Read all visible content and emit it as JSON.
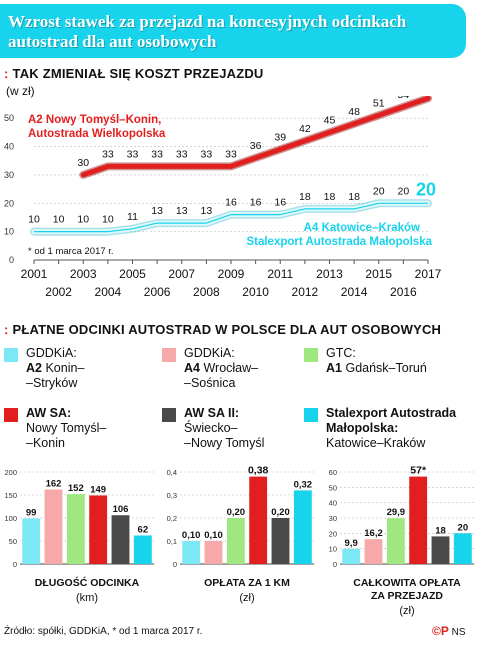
{
  "header": {
    "title": "Wzrost stawek za przejazd na koncesyjnych odcinkach autostrad dla aut osobowych"
  },
  "section1": {
    "mark": ":",
    "title": "TAK ZMIENIAŁ SIĘ KOSZT PRZEJAZDU",
    "unit": "(w zł)"
  },
  "section2": {
    "mark": ":",
    "title": "PŁATNE ODCINKI AUTOSTRAD W POLSCE DLA AUT OSOBOWYCH"
  },
  "legend": [
    {
      "org": "GDDKiA:",
      "road": "A2",
      "route": "Konin–",
      "route2": "–Stryków",
      "color": "#7de8f5",
      "bold_org": false
    },
    {
      "org": "GDDKiA:",
      "road": "A4",
      "route": "Wrocław–",
      "route2": "–Sośnica",
      "color": "#f7a9a9",
      "bold_org": false
    },
    {
      "org": "GTC:",
      "road": "A1",
      "route": "Gdańsk–Toruń",
      "route2": "",
      "color": "#9fe87f",
      "bold_org": false
    },
    {
      "org": "AW SA:",
      "road": "",
      "route": "Nowy Tomyśl–",
      "route2": "–Konin",
      "color": "#e21f1f",
      "bold_org": true
    },
    {
      "org": "AW SA II:",
      "road": "",
      "route": "Świecko–",
      "route2": "–Nowy Tomyśl",
      "color": "#4a4a4a",
      "bold_org": true
    },
    {
      "org": "Stalexport Autostrada Małopolska:",
      "road": "",
      "route": "Katowice–Kraków",
      "route2": "",
      "color": "#17d3ec",
      "bold_org": true
    }
  ],
  "chart_data": [
    {
      "type": "line",
      "title": "TAK ZMIENIAŁ SIĘ KOSZT PRZEJAZDU",
      "ylabel": "(w zł)",
      "ylim": [
        0,
        55
      ],
      "yticks": [
        0,
        10,
        20,
        30,
        40,
        50
      ],
      "x": [
        "2001",
        "2002",
        "2003",
        "2004",
        "2005",
        "2006",
        "2007",
        "2008",
        "2009",
        "2010",
        "2011",
        "2012",
        "2013",
        "2014",
        "2015",
        "2016",
        "2017"
      ],
      "series": [
        {
          "name": "A2 Nowy Tomyśl–Konin, Autostrada Wielkopolska",
          "color": "#e21f1f",
          "x": [
            "2003",
            "2004",
            "2005",
            "2006",
            "2007",
            "2008",
            "2009",
            "2010",
            "2011",
            "2012",
            "2013",
            "2014",
            "2015",
            "2016",
            "2017"
          ],
          "values": [
            30,
            33,
            33,
            33,
            33,
            33,
            33,
            36,
            39,
            42,
            45,
            48,
            51,
            54,
            57
          ],
          "labels": [
            "30",
            "33",
            "33",
            "33",
            "33",
            "33",
            "33",
            "36",
            "39",
            "42",
            "45",
            "48",
            "51",
            "54",
            "57*"
          ]
        },
        {
          "name": "A4 Katowice–Kraków Stalexport Autostrada Małopolska",
          "color": "#17d3ec",
          "x": [
            "2001",
            "2002",
            "2003",
            "2004",
            "2005",
            "2006",
            "2007",
            "2008",
            "2009",
            "2010",
            "2011",
            "2012",
            "2013",
            "2014",
            "2015",
            "2016",
            "2017"
          ],
          "values": [
            10,
            10,
            10,
            10,
            11,
            13,
            13,
            13,
            16,
            16,
            16,
            18,
            18,
            18,
            20,
            20,
            20
          ],
          "labels": [
            "10",
            "10",
            "10",
            "10",
            "11",
            "13",
            "13",
            "13",
            "16",
            "16",
            "16",
            "18",
            "18",
            "18",
            "20",
            "20",
            "20"
          ]
        }
      ],
      "series_label_red_1": "A2 Nowy Tomyśl–Konin,",
      "series_label_red_2": "Autostrada Wielkopolska",
      "series_label_cyan_1": "A4 Katowice–Kraków",
      "series_label_cyan_2": "Stalexport Autostrada Małopolska",
      "note": "* od 1 marca 2017 r."
    },
    {
      "type": "bar",
      "title": "DŁUGOŚĆ ODCINKA",
      "unit": "(km)",
      "ylim": [
        0,
        200
      ],
      "yticks": [
        0,
        50,
        100,
        150,
        200
      ],
      "values": [
        99,
        162,
        152,
        149,
        106,
        62
      ],
      "labels": [
        "99",
        "162",
        "152",
        "149",
        "106",
        "62"
      ],
      "colors": [
        "#7de8f5",
        "#f7a9a9",
        "#9fe87f",
        "#e21f1f",
        "#4a4a4a",
        "#17d3ec"
      ]
    },
    {
      "type": "bar",
      "title": "OPŁATA ZA 1 KM",
      "unit": "(zł)",
      "ylim": [
        0,
        0.4
      ],
      "yticks": [
        "0",
        "0,1",
        "0,2",
        "0,3",
        "0,4"
      ],
      "values": [
        0.1,
        0.1,
        0.2,
        0.38,
        0.2,
        0.32
      ],
      "labels": [
        "0,10",
        "0,10",
        "0,20",
        "0,38",
        "0,20",
        "0,32"
      ],
      "colors": [
        "#7de8f5",
        "#f7a9a9",
        "#9fe87f",
        "#e21f1f",
        "#4a4a4a",
        "#17d3ec"
      ]
    },
    {
      "type": "bar",
      "title": "CAŁKOWITA OPŁATA ZA PRZEJAZD",
      "unit": "(zł)",
      "ylim": [
        0,
        60
      ],
      "yticks": [
        0,
        10,
        20,
        30,
        40,
        50,
        60
      ],
      "values": [
        9.9,
        16.2,
        29.9,
        57,
        18,
        20
      ],
      "labels": [
        "9,9",
        "16,2",
        "29,9",
        "57*",
        "18",
        "20"
      ],
      "colors": [
        "#7de8f5",
        "#f7a9a9",
        "#9fe87f",
        "#e21f1f",
        "#4a4a4a",
        "#17d3ec"
      ]
    }
  ],
  "footer": {
    "source": "Źródło: spółki, GDDKiA, * od 1 marca 2017 r.",
    "logo_mark": "©P",
    "logo_text": "NS"
  }
}
